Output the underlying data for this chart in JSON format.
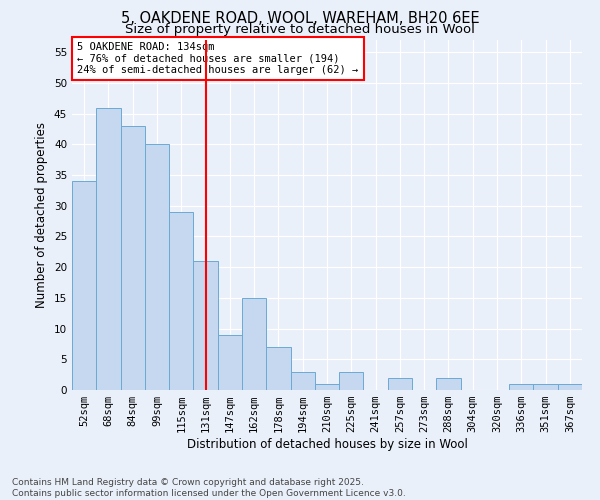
{
  "title_line1": "5, OAKDENE ROAD, WOOL, WAREHAM, BH20 6EE",
  "title_line2": "Size of property relative to detached houses in Wool",
  "xlabel": "Distribution of detached houses by size in Wool",
  "ylabel": "Number of detached properties",
  "categories": [
    "52sqm",
    "68sqm",
    "84sqm",
    "99sqm",
    "115sqm",
    "131sqm",
    "147sqm",
    "162sqm",
    "178sqm",
    "194sqm",
    "210sqm",
    "225sqm",
    "241sqm",
    "257sqm",
    "273sqm",
    "288sqm",
    "304sqm",
    "320sqm",
    "336sqm",
    "351sqm",
    "367sqm"
  ],
  "values": [
    34,
    46,
    43,
    40,
    29,
    21,
    9,
    15,
    7,
    3,
    1,
    3,
    0,
    2,
    0,
    2,
    0,
    0,
    1,
    1,
    1
  ],
  "bar_color": "#c5d8f0",
  "bar_edge_color": "#6aaad4",
  "vline_x": 5,
  "vline_color": "red",
  "annotation_text": "5 OAKDENE ROAD: 134sqm\n← 76% of detached houses are smaller (194)\n24% of semi-detached houses are larger (62) →",
  "annotation_box_color": "white",
  "annotation_box_edge_color": "red",
  "ylim": [
    0,
    57
  ],
  "yticks": [
    0,
    5,
    10,
    15,
    20,
    25,
    30,
    35,
    40,
    45,
    50,
    55
  ],
  "bg_color": "#eaf0fa",
  "grid_color": "white",
  "footer_text": "Contains HM Land Registry data © Crown copyright and database right 2025.\nContains public sector information licensed under the Open Government Licence v3.0.",
  "title_fontsize": 10.5,
  "subtitle_fontsize": 9.5,
  "axis_label_fontsize": 8.5,
  "tick_fontsize": 7.5,
  "annotation_fontsize": 7.5,
  "footer_fontsize": 6.5
}
